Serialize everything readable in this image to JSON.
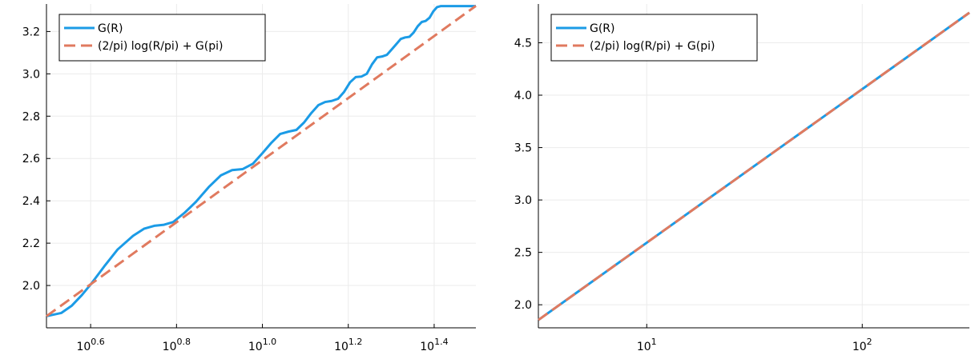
{
  "chart_data": [
    {
      "type": "line",
      "x_scale": "log10",
      "xlim": [
        3.1416,
        31.4159
      ],
      "ylim": [
        1.8,
        3.33
      ],
      "x_ticks": [
        3.981,
        6.31,
        10.0,
        15.849,
        25.119
      ],
      "x_tick_labels": [
        {
          "base": "10",
          "exp": "0.6"
        },
        {
          "base": "10",
          "exp": "0.8"
        },
        {
          "base": "10",
          "exp": "1.0"
        },
        {
          "base": "10",
          "exp": "1.2"
        },
        {
          "base": "10",
          "exp": "1.4"
        }
      ],
      "y_ticks": [
        2.0,
        2.2,
        2.4,
        2.6,
        2.8,
        3.0,
        3.2
      ],
      "y_tick_labels": [
        "2.0",
        "2.2",
        "2.4",
        "2.6",
        "2.8",
        "3.0",
        "3.2"
      ],
      "grid": true,
      "legend_position": "top-left",
      "series": [
        {
          "name": "G(R)",
          "style": "solid",
          "color": "#1b9be6",
          "x": [
            3.1416,
            3.4,
            3.6,
            3.8,
            4.0,
            4.3,
            4.6,
            5.0,
            5.3,
            5.6,
            5.9,
            6.2,
            6.6,
            7.0,
            7.5,
            8.0,
            8.5,
            9.0,
            9.5,
            10.0,
            10.5,
            11.0,
            11.5,
            12.0,
            12.5,
            13.0,
            13.5,
            14.0,
            14.5,
            15.0,
            15.5,
            16.0,
            16.5,
            17.0,
            17.5,
            18.0,
            18.5,
            19.0,
            19.5,
            20.0,
            20.5,
            21.0,
            21.5,
            22.0,
            22.5,
            23.0,
            23.5,
            24.0,
            24.5,
            25.0,
            25.5,
            26.0,
            26.5,
            27.0,
            27.5,
            28.0,
            28.5,
            29.0,
            29.5,
            30.0,
            30.5,
            31.0,
            31.4159
          ],
          "y": [
            1.855,
            1.87,
            1.905,
            1.955,
            2.01,
            2.095,
            2.17,
            2.235,
            2.268,
            2.282,
            2.287,
            2.3,
            2.345,
            2.395,
            2.465,
            2.52,
            2.545,
            2.55,
            2.575,
            2.625,
            2.675,
            2.716,
            2.727,
            2.735,
            2.77,
            2.815,
            2.852,
            2.867,
            2.872,
            2.882,
            2.915,
            2.96,
            2.985,
            2.987,
            3.0,
            3.045,
            3.078,
            3.082,
            3.09,
            3.115,
            3.14,
            3.165,
            3.172,
            3.175,
            3.195,
            3.225,
            3.245,
            3.25,
            3.265,
            3.295,
            3.315,
            3.32,
            3.32,
            3.32,
            3.32,
            3.32,
            3.32,
            3.32,
            3.32,
            3.32,
            3.32,
            3.32,
            3.32
          ]
        },
        {
          "name": "(2/pi) log(R/pi) + G(pi)",
          "style": "dashed",
          "color": "#e07a5f",
          "x": [
            3.1416,
            31.4159
          ],
          "y": [
            1.855,
            3.321
          ]
        }
      ]
    },
    {
      "type": "line",
      "x_scale": "log10",
      "xlim": [
        3.1416,
        314.159
      ],
      "ylim": [
        1.78,
        4.87
      ],
      "x_ticks": [
        10,
        100
      ],
      "x_tick_labels": [
        {
          "base": "10",
          "exp": "1"
        },
        {
          "base": "10",
          "exp": "2"
        }
      ],
      "y_ticks": [
        2.0,
        2.5,
        3.0,
        3.5,
        4.0,
        4.5
      ],
      "y_tick_labels": [
        "2.0",
        "2.5",
        "3.0",
        "3.5",
        "4.0",
        "4.5"
      ],
      "grid": true,
      "legend_position": "top-left",
      "series": [
        {
          "name": "G(R)",
          "style": "solid",
          "color": "#1b9be6",
          "x": [
            3.1416,
            5,
            10,
            20,
            40,
            80,
            160,
            314.159
          ],
          "y": [
            1.855,
            2.151,
            2.592,
            3.034,
            3.475,
            3.916,
            4.357,
            4.787
          ]
        },
        {
          "name": "(2/pi) log(R/pi) + G(pi)",
          "style": "dashed",
          "color": "#e07a5f",
          "x": [
            3.1416,
            314.159
          ],
          "y": [
            1.855,
            4.787
          ]
        }
      ]
    }
  ]
}
